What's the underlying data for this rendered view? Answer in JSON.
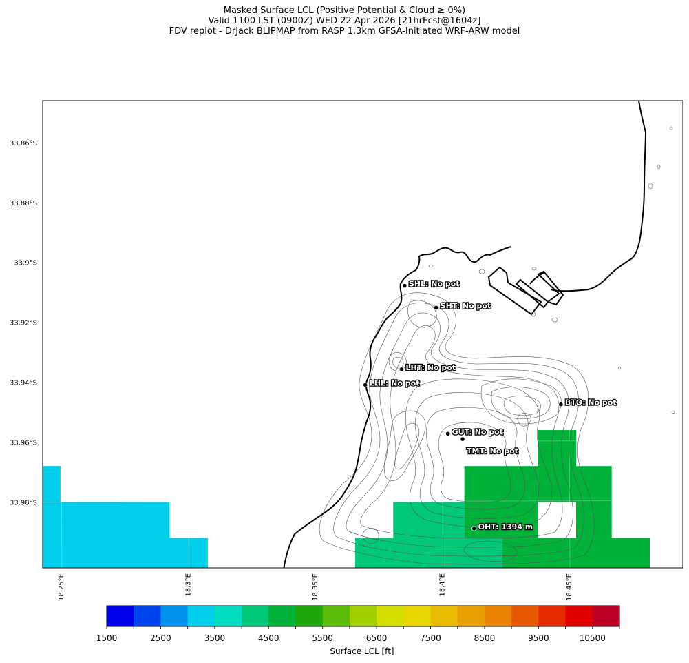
{
  "title": {
    "line1": "Masked Surface LCL (Positive Potential & Cloud ≥ 0%)",
    "line2": "Valid 1100 LST (0900Z) WED 22 Apr 2026 [21hrFcst@1604z]",
    "line3": "FDV replot - DrJack BLIPMAP from RASP 1.3km GFSA-Initiated WRF-ARW model"
  },
  "map": {
    "lon_range": [
      18.243,
      18.495
    ],
    "lat_range": [
      -34.002,
      -33.846
    ],
    "lat_ticks": [
      {
        "value": -33.86,
        "label": "33.86°S"
      },
      {
        "value": -33.88,
        "label": "33.88°S"
      },
      {
        "value": -33.9,
        "label": "33.9°S"
      },
      {
        "value": -33.92,
        "label": "33.92°S"
      },
      {
        "value": -33.94,
        "label": "33.94°S"
      },
      {
        "value": -33.96,
        "label": "33.96°S"
      },
      {
        "value": -33.98,
        "label": "33.98°S"
      }
    ],
    "lon_ticks": [
      {
        "value": 18.25,
        "label": "18.25°E"
      },
      {
        "value": 18.3,
        "label": "18.3°E"
      },
      {
        "value": 18.35,
        "label": "18.35°E"
      },
      {
        "value": 18.4,
        "label": "18.4°E"
      },
      {
        "value": 18.45,
        "label": "18.45°E"
      }
    ],
    "sites": [
      {
        "code": "SHL",
        "text": "SHL: No pot",
        "lon": 18.3855,
        "lat": -33.9078
      },
      {
        "code": "SHT",
        "text": "SHT: No pot",
        "lon": 18.3979,
        "lat": -33.9151
      },
      {
        "code": "LHT",
        "text": "LHT: No pot",
        "lon": 18.3843,
        "lat": -33.9357
      },
      {
        "code": "LHL",
        "text": "LHL: No pot",
        "lon": 18.37,
        "lat": -33.9409
      },
      {
        "code": "BTO",
        "text": "BTO: No pot",
        "lon": 18.447,
        "lat": -33.9474
      },
      {
        "code": "GUT",
        "text": "GUT: No pot",
        "lon": 18.4025,
        "lat": -33.9572
      },
      {
        "code": "TMT",
        "text": "TMT: No pot",
        "lon": 18.4083,
        "lat": -33.959
      },
      {
        "code": "OHT",
        "text": "OHT: 1394 m",
        "lon": 18.4128,
        "lat": -33.9889
      }
    ]
  },
  "lcl_cells": [
    {
      "lon0": 18.243,
      "lon1": 18.25,
      "lat0": -33.98,
      "lat1": -33.968,
      "value_ft": 3250,
      "color": "#00ceea"
    },
    {
      "lon0": 18.243,
      "lon1": 18.293,
      "lat0": -33.992,
      "lat1": -33.98,
      "value_ft": 3250,
      "color": "#00ceea"
    },
    {
      "lon0": 18.243,
      "lon1": 18.308,
      "lat0": -34.002,
      "lat1": -33.992,
      "value_ft": 3250,
      "color": "#00ceea"
    },
    {
      "lon0": 18.366,
      "lon1": 18.424,
      "lat0": -34.002,
      "lat1": -33.992,
      "value_ft": 4250,
      "color": "#00c878"
    },
    {
      "lon0": 18.381,
      "lon1": 18.409,
      "lat0": -33.992,
      "lat1": -33.98,
      "value_ft": 4250,
      "color": "#00c878"
    },
    {
      "lon0": 18.409,
      "lon1": 18.438,
      "lat0": -33.992,
      "lat1": -33.968,
      "value_ft": 4750,
      "color": "#00b13a"
    },
    {
      "lon0": 18.438,
      "lon1": 18.453,
      "lat0": -33.98,
      "lat1": -33.956,
      "value_ft": 4750,
      "color": "#00b13a"
    },
    {
      "lon0": 18.453,
      "lon1": 18.467,
      "lat0": -33.992,
      "lat1": -33.968,
      "value_ft": 4750,
      "color": "#00b13a"
    },
    {
      "lon0": 18.424,
      "lon1": 18.482,
      "lat0": -34.002,
      "lat1": -33.992,
      "value_ft": 4750,
      "color": "#00b13a"
    }
  ],
  "colorbar": {
    "label": "Surface LCL [ft]",
    "colors": [
      "#0000ee",
      "#0044ee",
      "#0092ee",
      "#00ceea",
      "#00dcc0",
      "#00c878",
      "#00b13a",
      "#1ea80a",
      "#5cbc0a",
      "#a0d000",
      "#d4df00",
      "#e8d600",
      "#e8ba00",
      "#e8a000",
      "#e88000",
      "#e85800",
      "#e82a00",
      "#e00000",
      "#be0028"
    ],
    "tick_labels": [
      "1500",
      "2500",
      "3500",
      "4500",
      "5500",
      "6500",
      "7500",
      "8500",
      "9500",
      "10500"
    ]
  }
}
